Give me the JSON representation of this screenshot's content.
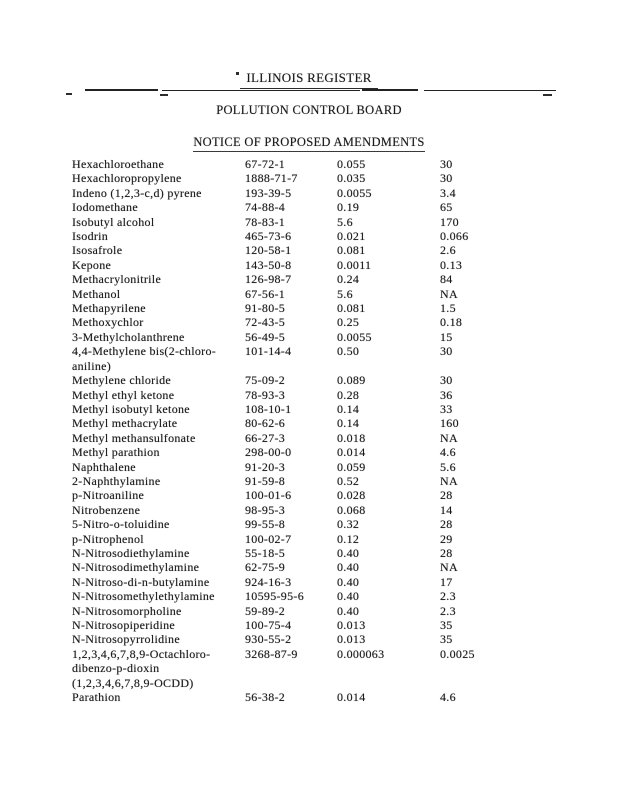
{
  "header": {
    "register_title": "ILLINOIS REGISTER",
    "board_title": "POLLUTION CONTROL BOARD",
    "notice_title": "NOTICE OF PROPOSED AMENDMENTS"
  },
  "table": {
    "columns": [
      "chemical_name",
      "cas_number",
      "value_1",
      "value_2"
    ],
    "rows": [
      {
        "name": [
          "Hexachloroethane"
        ],
        "cas": "67-72-1",
        "v1": "0.055",
        "v2": "30"
      },
      {
        "name": [
          "Hexachloropropylene"
        ],
        "cas": "1888-71-7",
        "v1": "0.035",
        "v2": "30"
      },
      {
        "name": [
          "Indeno (1,2,3-c,d) pyrene"
        ],
        "cas": "193-39-5",
        "v1": "0.0055",
        "v2": "3.4"
      },
      {
        "name": [
          "Iodomethane"
        ],
        "cas": "74-88-4",
        "v1": "0.19",
        "v2": "65"
      },
      {
        "name": [
          "Isobutyl alcohol"
        ],
        "cas": "78-83-1",
        "v1": "5.6",
        "v2": "170"
      },
      {
        "name": [
          "Isodrin"
        ],
        "cas": "465-73-6",
        "v1": "0.021",
        "v2": "0.066"
      },
      {
        "name": [
          "Isosafrole"
        ],
        "cas": "120-58-1",
        "v1": "0.081",
        "v2": "2.6"
      },
      {
        "name": [
          "Kepone"
        ],
        "cas": "143-50-8",
        "v1": "0.0011",
        "v2": "0.13"
      },
      {
        "name": [
          "Methacrylonitrile"
        ],
        "cas": "126-98-7",
        "v1": "0.24",
        "v2": "84"
      },
      {
        "name": [
          "Methanol"
        ],
        "cas": "67-56-1",
        "v1": "5.6",
        "v2": "NA"
      },
      {
        "name": [
          "Methapyrilene"
        ],
        "cas": "91-80-5",
        "v1": "0.081",
        "v2": "1.5"
      },
      {
        "name": [
          "Methoxychlor"
        ],
        "cas": "72-43-5",
        "v1": "0.25",
        "v2": "0.18"
      },
      {
        "name": [
          "3-Methylcholanthrene"
        ],
        "cas": "56-49-5",
        "v1": "0.0055",
        "v2": "15"
      },
      {
        "name": [
          "4,4-Methylene bis(2-chloro-",
          "aniline)"
        ],
        "cas": "101-14-4",
        "v1": "0.50",
        "v2": "30"
      },
      {
        "name": [
          "Methylene chloride"
        ],
        "cas": "75-09-2",
        "v1": "0.089",
        "v2": "30"
      },
      {
        "name": [
          "Methyl ethyl ketone"
        ],
        "cas": "78-93-3",
        "v1": "0.28",
        "v2": "36"
      },
      {
        "name": [
          "Methyl isobutyl ketone"
        ],
        "cas": "108-10-1",
        "v1": "0.14",
        "v2": "33"
      },
      {
        "name": [
          "Methyl methacrylate"
        ],
        "cas": "80-62-6",
        "v1": "0.14",
        "v2": "160"
      },
      {
        "name": [
          "Methyl methansulfonate"
        ],
        "cas": "66-27-3",
        "v1": "0.018",
        "v2": "NA"
      },
      {
        "name": [
          "Methyl parathion"
        ],
        "cas": "298-00-0",
        "v1": "0.014",
        "v2": "4.6"
      },
      {
        "name": [
          "Naphthalene"
        ],
        "cas": "91-20-3",
        "v1": "0.059",
        "v2": "5.6"
      },
      {
        "name": [
          "2-Naphthylamine"
        ],
        "cas": "91-59-8",
        "v1": "0.52",
        "v2": "NA"
      },
      {
        "name": [
          "p-Nitroaniline"
        ],
        "cas": "100-01-6",
        "v1": "0.028",
        "v2": "28"
      },
      {
        "name": [
          "Nitrobenzene"
        ],
        "cas": "98-95-3",
        "v1": "0.068",
        "v2": "14"
      },
      {
        "name": [
          "5-Nitro-o-toluidine"
        ],
        "cas": "99-55-8",
        "v1": "0.32",
        "v2": "28"
      },
      {
        "name": [
          "p-Nitrophenol"
        ],
        "cas": "100-02-7",
        "v1": "0.12",
        "v2": "29"
      },
      {
        "name": [
          "N-Nitrosodiethylamine"
        ],
        "cas": "55-18-5",
        "v1": "0.40",
        "v2": "28"
      },
      {
        "name": [
          "N-Nitrosodimethylamine"
        ],
        "cas": "62-75-9",
        "v1": "0.40",
        "v2": "NA"
      },
      {
        "name": [
          "N-Nitroso-di-n-butylamine"
        ],
        "cas": "924-16-3",
        "v1": "0.40",
        "v2": "17"
      },
      {
        "name": [
          "N-Nitrosomethylethylamine"
        ],
        "cas": "10595-95-6",
        "v1": "0.40",
        "v2": "2.3"
      },
      {
        "name": [
          "N-Nitrosomorpholine"
        ],
        "cas": "59-89-2",
        "v1": "0.40",
        "v2": "2.3"
      },
      {
        "name": [
          "N-Nitrosopiperidine"
        ],
        "cas": "100-75-4",
        "v1": "0.013",
        "v2": "35"
      },
      {
        "name": [
          "N-Nitrosopyrrolidine"
        ],
        "cas": "930-55-2",
        "v1": "0.013",
        "v2": "35"
      },
      {
        "name": [
          "1,2,3,4,6,7,8,9-Octachloro-",
          "dibenzo-p-dioxin",
          "(1,2,3,4,6,7,8,9-OCDD)"
        ],
        "cas": "3268-87-9",
        "v1": "0.000063",
        "v2": "0.0025"
      },
      {
        "name": [
          "Parathion"
        ],
        "cas": "56-38-2",
        "v1": "0.014",
        "v2": "4.6"
      }
    ]
  }
}
